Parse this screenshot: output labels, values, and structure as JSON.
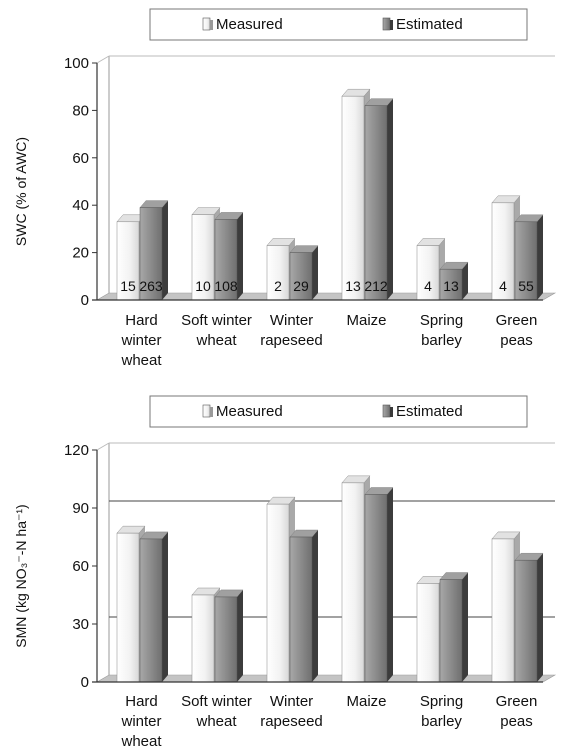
{
  "chart_data": [
    {
      "type": "bar",
      "ylabel": "SWC (% of AWC)",
      "ylim": [
        0,
        100
      ],
      "yticks": [
        0,
        20,
        40,
        60,
        80,
        100
      ],
      "categories": [
        [
          "Hard",
          "winter",
          "wheat"
        ],
        [
          "Soft winter",
          "wheat"
        ],
        [
          "Winter",
          "rapeseed"
        ],
        [
          "Maize"
        ],
        [
          "Spring",
          "barley"
        ],
        [
          "Green",
          "peas"
        ]
      ],
      "legend": [
        "Measured",
        "Estimated"
      ],
      "legend_position": "top",
      "series": [
        {
          "name": "Measured",
          "values": [
            33,
            36,
            23,
            86,
            23,
            41
          ]
        },
        {
          "name": "Estimated",
          "values": [
            39,
            34,
            20,
            82,
            13,
            33
          ]
        }
      ],
      "data_labels": [
        [
          "15",
          "263"
        ],
        [
          "10",
          "108"
        ],
        [
          "2",
          "29"
        ],
        [
          "13",
          "212"
        ],
        [
          "4",
          "13"
        ],
        [
          "4",
          "55"
        ]
      ],
      "gridlines": []
    },
    {
      "type": "bar",
      "ylabel": "SMN (kg NO₃⁻-N ha⁻¹)",
      "ylim": [
        0,
        120
      ],
      "yticks": [
        0,
        30,
        60,
        90,
        120
      ],
      "categories": [
        [
          "Hard",
          "winter",
          "wheat"
        ],
        [
          "Soft winter",
          "wheat"
        ],
        [
          "Winter",
          "rapeseed"
        ],
        [
          "Maize"
        ],
        [
          "Spring",
          "barley"
        ],
        [
          "Green",
          "peas"
        ]
      ],
      "legend": [
        "Measured",
        "Estimated"
      ],
      "legend_position": "top",
      "series": [
        {
          "name": "Measured",
          "values": [
            77,
            45,
            92,
            103,
            51,
            74
          ]
        },
        {
          "name": "Estimated",
          "values": [
            74,
            44,
            75,
            97,
            53,
            63
          ]
        }
      ],
      "data_labels": [],
      "gridlines": [
        30,
        90
      ]
    }
  ],
  "colors": {
    "measured": "#f4f4f4",
    "estimated": "#8c8c8c",
    "floor": "#c4c4c4",
    "axis": "#333333"
  }
}
